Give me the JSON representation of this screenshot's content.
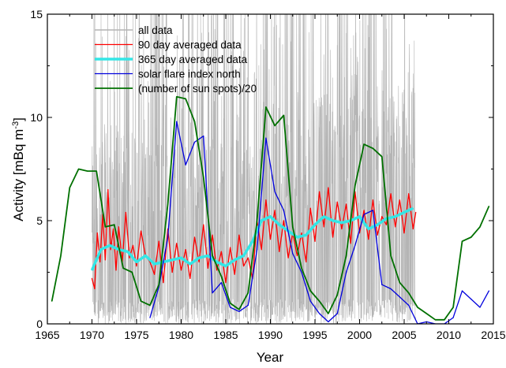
{
  "chart_data": {
    "type": "line",
    "title": "",
    "xlabel": "Year",
    "ylabel": "Activity [mBq m⁻³]",
    "xlim": [
      1965,
      2015
    ],
    "ylim": [
      0,
      15
    ],
    "x_ticks": [
      "1965",
      "1970",
      "1975",
      "1980",
      "1985",
      "1990",
      "1995",
      "2000",
      "2005",
      "2010",
      "2015"
    ],
    "y_ticks": [
      "0",
      "5",
      "10",
      "15"
    ],
    "legend_position": "top-left",
    "series": [
      {
        "name": "all data",
        "color": "#b4b4b4",
        "kind": "noisy-band",
        "x_range": [
          1970.0,
          2006.3
        ],
        "note_values": "daily measurements; values fluctuate densely between about 0 and above 15, mean near 4"
      },
      {
        "name": "90 day averaged data",
        "color": "#ff0000",
        "x": [
          1970.0,
          1970.3,
          1970.6,
          1970.9,
          1971.2,
          1971.5,
          1971.8,
          1972.1,
          1972.4,
          1972.7,
          1973.0,
          1973.4,
          1973.8,
          1974.2,
          1974.6,
          1975.0,
          1975.5,
          1976.0,
          1976.5,
          1977.0,
          1977.5,
          1978.0,
          1978.5,
          1979.0,
          1979.5,
          1980.0,
          1980.5,
          1981.0,
          1981.5,
          1982.0,
          1982.5,
          1983.0,
          1983.5,
          1984.0,
          1984.5,
          1985.0,
          1985.5,
          1986.0,
          1986.5,
          1987.0,
          1987.5,
          1988.0,
          1988.5,
          1989.0,
          1989.5,
          1990.0,
          1990.5,
          1991.0,
          1991.5,
          1992.0,
          1992.5,
          1993.0,
          1993.5,
          1994.0,
          1994.5,
          1995.0,
          1995.5,
          1996.0,
          1996.5,
          1997.0,
          1997.5,
          1998.0,
          1998.5,
          1999.0,
          1999.5,
          2000.0,
          2000.5,
          2001.0,
          2001.5,
          2002.0,
          2002.5,
          2003.0,
          2003.5,
          2004.0,
          2004.5,
          2005.0,
          2005.5,
          2006.0,
          2006.3
        ],
        "values": [
          2.2,
          1.7,
          4.4,
          3.0,
          5.3,
          3.1,
          6.5,
          3.6,
          4.6,
          2.6,
          4.7,
          3.0,
          5.4,
          3.2,
          3.8,
          2.8,
          4.5,
          3.3,
          3.0,
          2.4,
          4.0,
          2.0,
          4.6,
          2.5,
          3.9,
          2.6,
          3.6,
          2.2,
          4.2,
          3.0,
          4.8,
          2.7,
          4.3,
          2.6,
          3.5,
          2.0,
          3.7,
          2.4,
          4.3,
          2.8,
          3.2,
          2.2,
          5.0,
          3.6,
          6.0,
          4.1,
          5.5,
          3.5,
          5.0,
          3.2,
          4.4,
          3.3,
          4.4,
          3.0,
          5.6,
          4.0,
          6.4,
          4.7,
          6.6,
          4.2,
          5.9,
          4.6,
          5.8,
          3.9,
          6.4,
          4.4,
          5.5,
          4.1,
          6.0,
          4.3,
          5.2,
          4.8,
          6.3,
          4.7,
          6.0,
          4.4,
          6.3,
          4.6,
          5.4
        ]
      },
      {
        "name": "365 day averaged data",
        "color": "#33e6e6",
        "x": [
          1970.0,
          1971.0,
          1972.0,
          1973.0,
          1974.0,
          1975.0,
          1976.0,
          1977.0,
          1978.0,
          1979.0,
          1980.0,
          1981.0,
          1982.0,
          1983.0,
          1984.0,
          1985.0,
          1986.0,
          1987.0,
          1988.0,
          1989.0,
          1990.0,
          1991.0,
          1992.0,
          1993.0,
          1994.0,
          1995.0,
          1996.0,
          1997.0,
          1998.0,
          1999.0,
          2000.0,
          2001.0,
          2002.0,
          2003.0,
          2004.0,
          2005.0,
          2006.0
        ],
        "values": [
          2.6,
          3.6,
          3.8,
          3.6,
          3.5,
          3.0,
          3.3,
          2.9,
          3.0,
          3.1,
          3.2,
          2.9,
          3.2,
          3.3,
          3.0,
          2.8,
          3.1,
          3.3,
          4.0,
          5.0,
          5.2,
          4.8,
          4.5,
          4.2,
          4.3,
          4.8,
          5.2,
          5.0,
          4.9,
          5.0,
          5.2,
          4.6,
          4.8,
          5.1,
          5.2,
          5.4,
          5.6
        ]
      },
      {
        "name": "solar flare index north",
        "color": "#0000dd",
        "x": [
          1976.5,
          1977.5,
          1978.5,
          1979.5,
          1980.5,
          1981.5,
          1982.5,
          1983.5,
          1984.5,
          1985.5,
          1986.5,
          1987.5,
          1988.5,
          1989.5,
          1990.5,
          1991.5,
          1992.5,
          1993.5,
          1994.5,
          1995.5,
          1996.5,
          1997.5,
          1998.5,
          1999.5,
          2000.5,
          2001.5,
          2002.5,
          2003.5,
          2004.5,
          2005.5,
          2006.5,
          2007.5,
          2008.5,
          2009.5,
          2010.5,
          2011.5,
          2012.5,
          2013.5,
          2014.5
        ],
        "values": [
          0.3,
          1.8,
          4.2,
          9.8,
          7.7,
          8.8,
          9.1,
          1.5,
          2.0,
          0.8,
          0.6,
          0.9,
          3.6,
          9.0,
          6.4,
          5.5,
          3.4,
          2.5,
          1.1,
          0.5,
          0.1,
          0.5,
          2.5,
          3.8,
          5.3,
          5.5,
          1.9,
          1.7,
          1.3,
          0.9,
          0.0,
          0.1,
          0.0,
          0.0,
          0.3,
          1.6,
          1.2,
          0.8,
          1.6
        ]
      },
      {
        "name": "(number of sun spots)/20",
        "color": "#007000",
        "x": [
          1965.5,
          1966.5,
          1967.5,
          1968.5,
          1969.5,
          1970.5,
          1971.5,
          1972.5,
          1973.5,
          1974.5,
          1975.5,
          1976.5,
          1977.5,
          1978.5,
          1979.5,
          1980.5,
          1981.5,
          1982.5,
          1983.5,
          1984.5,
          1985.5,
          1986.5,
          1987.5,
          1988.5,
          1989.5,
          1990.5,
          1991.5,
          1992.5,
          1993.5,
          1994.5,
          1995.5,
          1996.5,
          1997.5,
          1998.5,
          1999.5,
          2000.5,
          2001.5,
          2002.5,
          2003.5,
          2004.5,
          2005.5,
          2006.5,
          2007.5,
          2008.5,
          2009.5,
          2010.5,
          2011.5,
          2012.5,
          2013.5,
          2014.5
        ],
        "values": [
          1.1,
          3.3,
          6.6,
          7.5,
          7.4,
          7.4,
          4.7,
          4.8,
          2.7,
          2.5,
          1.1,
          0.9,
          1.9,
          5.8,
          11.0,
          10.9,
          9.8,
          7.1,
          3.3,
          2.3,
          1.0,
          0.7,
          1.5,
          5.0,
          10.5,
          9.6,
          10.1,
          4.7,
          2.7,
          1.6,
          1.1,
          0.5,
          1.4,
          3.3,
          6.7,
          8.7,
          8.5,
          8.1,
          3.3,
          2.0,
          1.5,
          0.8,
          0.5,
          0.2,
          0.2,
          0.8,
          4.0,
          4.2,
          4.7,
          5.7
        ]
      }
    ]
  }
}
